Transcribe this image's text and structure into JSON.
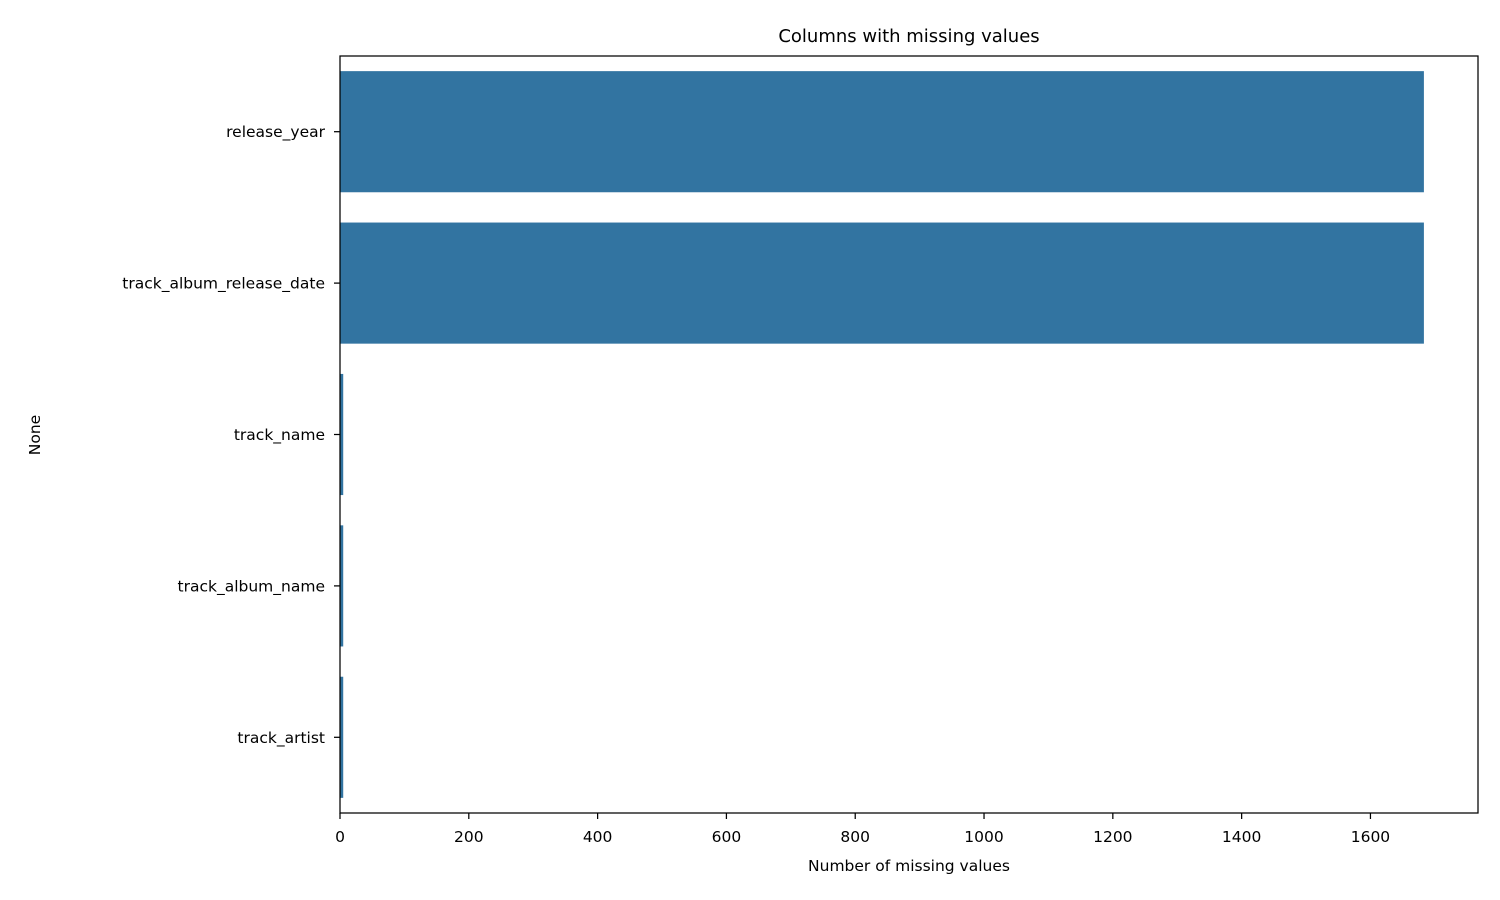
{
  "chart_data": {
    "type": "bar",
    "orientation": "horizontal",
    "title": "Columns with missing values",
    "xlabel": "Number of missing values",
    "ylabel": "None",
    "categories": [
      "release_year",
      "track_album_release_date",
      "track_name",
      "track_album_name",
      "track_artist"
    ],
    "values": [
      1683,
      1683,
      5,
      5,
      5
    ],
    "xlim": [
      0,
      1767
    ],
    "xticks": [
      0,
      200,
      400,
      600,
      800,
      1000,
      1200,
      1400,
      1600
    ],
    "grid": false,
    "legend": "none",
    "bar_color": "#3274a1"
  }
}
